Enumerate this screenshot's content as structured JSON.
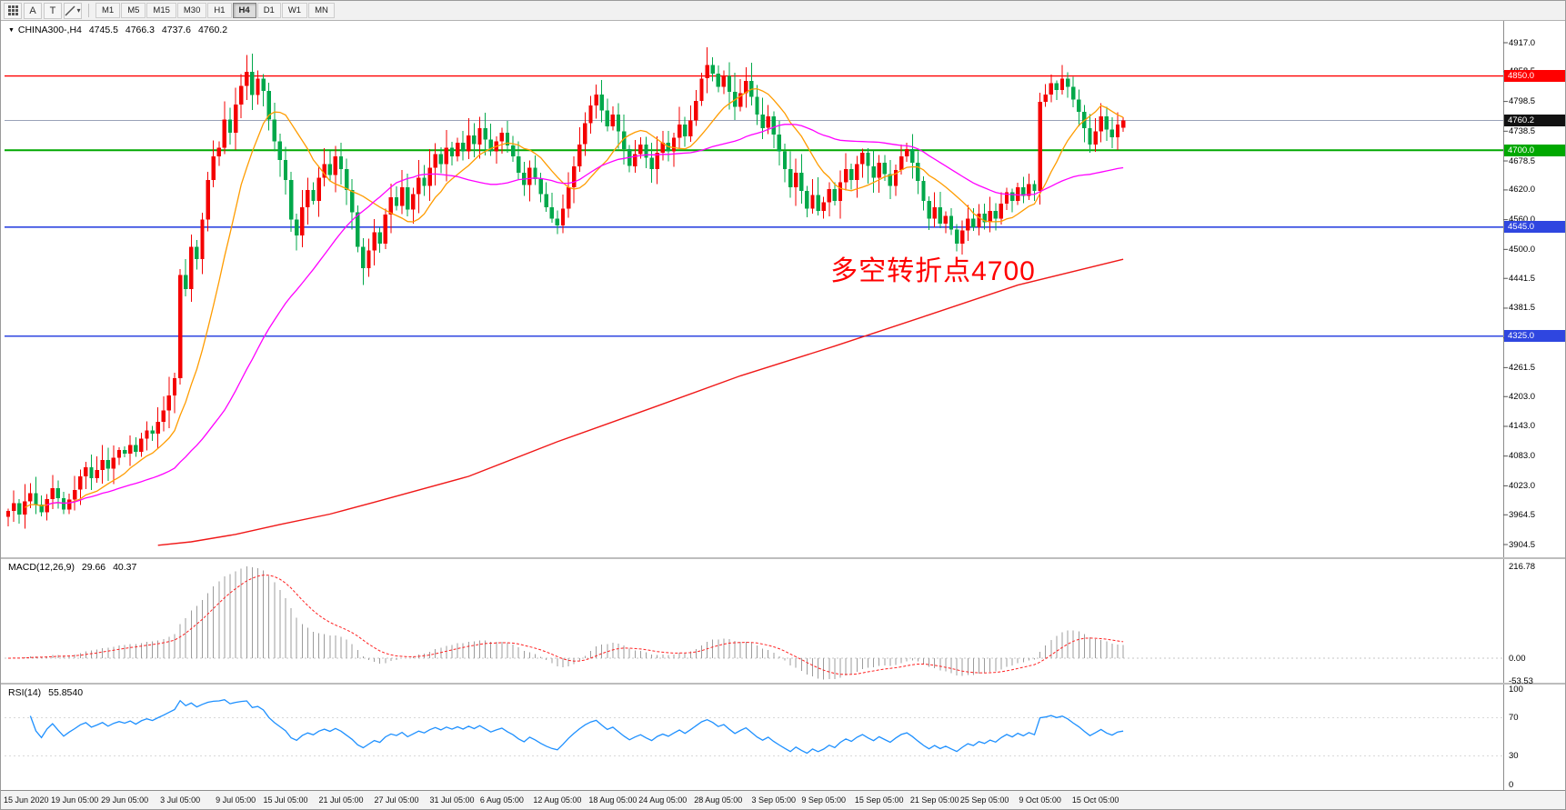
{
  "toolbar": {
    "left_buttons": [
      {
        "id": "grid",
        "type": "grid-icon"
      },
      {
        "id": "annotate-a",
        "label": "A"
      },
      {
        "id": "text-tool",
        "label": "T"
      },
      {
        "id": "line-tools",
        "type": "line-icon"
      }
    ],
    "timeframes": [
      {
        "label": "M1",
        "active": false
      },
      {
        "label": "M5",
        "active": false
      },
      {
        "label": "M15",
        "active": false
      },
      {
        "label": "M30",
        "active": false
      },
      {
        "label": "H1",
        "active": false
      },
      {
        "label": "H4",
        "active": true
      },
      {
        "label": "D1",
        "active": false
      },
      {
        "label": "W1",
        "active": false
      },
      {
        "label": "MN",
        "active": false
      }
    ]
  },
  "chart": {
    "header": {
      "symbol_period": "CHINA300-,H4",
      "open": "4745.5",
      "high": "4766.3",
      "low": "4737.6",
      "close": "4760.2"
    },
    "annotation": {
      "text": "多空转折点4700",
      "color": "#ff0000"
    },
    "colors": {
      "up": "#f40000",
      "down": "#00a84a",
      "ma_fast": "#ff9c00",
      "ma_mid": "#ff00ff",
      "ma_slow": "#f01818"
    },
    "hlines": [
      {
        "price": 4850.0,
        "label": "4850.0",
        "color": "#ff0000",
        "width": 1.4
      },
      {
        "price": 4700.0,
        "label": "4700.0",
        "color": "#00a800",
        "width": 2
      },
      {
        "price": 4545.0,
        "label": "4545.0",
        "color": "#2f46e0",
        "width": 1.6
      },
      {
        "price": 4325.0,
        "label": "4325.0",
        "color": "#2f46e0",
        "width": 1.6
      }
    ],
    "current_price": {
      "label": "4760.2",
      "price": 4760.2
    }
  },
  "chart_data": {
    "type": "candlestick",
    "symbol": "CHINA300-",
    "timeframe": "H4",
    "y_range": [
      3904.5,
      4917.0
    ],
    "y_ticks": [
      "4917.0",
      "4858.5",
      "4798.5",
      "4738.5",
      "4678.5",
      "4620.0",
      "4560.0",
      "4500.0",
      "4441.5",
      "4381.5",
      "4321.5",
      "4261.5",
      "4203.0",
      "4143.0",
      "4083.0",
      "4023.0",
      "3964.5",
      "3904.5"
    ],
    "first_open": 3960,
    "closes": [
      3972,
      3988,
      3965,
      3992,
      4008,
      3985,
      3970,
      3996,
      4018,
      3998,
      3975,
      3995,
      4015,
      4042,
      4060,
      4038,
      4055,
      4075,
      4058,
      4080,
      4095,
      4088,
      4105,
      4092,
      4118,
      4135,
      4128,
      4152,
      4175,
      4205,
      4240,
      4448,
      4420,
      4505,
      4480,
      4560,
      4640,
      4688,
      4705,
      4762,
      4735,
      4792,
      4830,
      4858,
      4812,
      4845,
      4820,
      4762,
      4718,
      4680,
      4640,
      4560,
      4528,
      4585,
      4620,
      4598,
      4645,
      4672,
      4650,
      4688,
      4662,
      4620,
      4575,
      4505,
      4462,
      4498,
      4535,
      4512,
      4570,
      4605,
      4588,
      4625,
      4580,
      4612,
      4645,
      4628,
      4665,
      4692,
      4672,
      4705,
      4688,
      4715,
      4698,
      4730,
      4712,
      4745,
      4722,
      4698,
      4718,
      4735,
      4710,
      4688,
      4655,
      4630,
      4665,
      4642,
      4612,
      4585,
      4562,
      4548,
      4582,
      4625,
      4668,
      4712,
      4755,
      4790,
      4812,
      4780,
      4748,
      4772,
      4738,
      4702,
      4668,
      4692,
      4712,
      4685,
      4662,
      4695,
      4715,
      4698,
      4725,
      4752,
      4728,
      4760,
      4800,
      4845,
      4872,
      4855,
      4828,
      4850,
      4818,
      4788,
      4815,
      4840,
      4808,
      4772,
      4745,
      4768,
      4732,
      4698,
      4662,
      4625,
      4655,
      4618,
      4582,
      4610,
      4578,
      4595,
      4622,
      4598,
      4635,
      4662,
      4640,
      4672,
      4695,
      4668,
      4645,
      4675,
      4652,
      4628,
      4660,
      4688,
      4702,
      4675,
      4638,
      4598,
      4562,
      4585,
      4552,
      4568,
      4540,
      4512,
      4538,
      4562,
      4545,
      4572,
      4555,
      4578,
      4562,
      4592,
      4615,
      4598,
      4625,
      4608,
      4632,
      4618,
      4798,
      4812,
      4835,
      4822,
      4845,
      4828,
      4802,
      4778,
      4745,
      4712,
      4738,
      4768,
      4742,
      4726,
      4752,
      4760.2
    ],
    "wick_high_overrides": {
      "43": 4892,
      "106": 4833,
      "127": 4888,
      "188": 4853
    },
    "wick_low_overrides": {
      "52": 4498,
      "64": 4428,
      "99": 4531,
      "171": 4496
    },
    "last_candle": {
      "open": 4745.5,
      "high": 4766.3,
      "low": 4737.6,
      "close": 4760.2
    },
    "ma_fast_period": 12,
    "ma_mid_period": 40,
    "ma_slow_points": [
      [
        27,
        3903
      ],
      [
        33,
        3910
      ],
      [
        41,
        3925
      ],
      [
        49,
        3945
      ],
      [
        58,
        3966
      ],
      [
        66,
        3990
      ],
      [
        83,
        4042
      ],
      [
        99,
        4112
      ],
      [
        116,
        4180
      ],
      [
        132,
        4245
      ],
      [
        149,
        4305
      ],
      [
        166,
        4368
      ],
      [
        182,
        4428
      ],
      [
        201,
        4480
      ]
    ],
    "x_labels": [
      [
        "15 Jun 2020",
        0
      ],
      [
        "19 Jun 05:00",
        12
      ],
      [
        "29 Jun 05:00",
        21
      ],
      [
        "3 Jul 05:00",
        31
      ],
      [
        "9 Jul 05:00",
        41
      ],
      [
        "15 Jul 05:00",
        50
      ],
      [
        "21 Jul 05:00",
        60
      ],
      [
        "27 Jul 05:00",
        70
      ],
      [
        "31 Jul 05:00",
        80
      ],
      [
        "6 Aug 05:00",
        89
      ],
      [
        "12 Aug 05:00",
        99
      ],
      [
        "18 Aug 05:00",
        109
      ],
      [
        "24 Aug 05:00",
        118
      ],
      [
        "28 Aug 05:00",
        128
      ],
      [
        "3 Sep 05:00",
        138
      ],
      [
        "9 Sep 05:00",
        147
      ],
      [
        "15 Sep 05:00",
        157
      ],
      [
        "21 Sep 05:00",
        167
      ],
      [
        "25 Sep 05:00",
        176
      ],
      [
        "9 Oct 05:00",
        186
      ],
      [
        "15 Oct 05:00",
        196
      ]
    ]
  },
  "macd": {
    "title": "MACD(12,26,9)",
    "value_main": "29.66",
    "value_signal": "40.37",
    "axis_labels": [
      "216.78",
      "0.00",
      "-53.53"
    ],
    "axis_values": [
      216.78,
      0,
      -53.53
    ]
  },
  "rsi": {
    "title": "RSI(14)",
    "value": "55.8540",
    "levels": [
      100,
      70,
      30,
      0
    ]
  }
}
